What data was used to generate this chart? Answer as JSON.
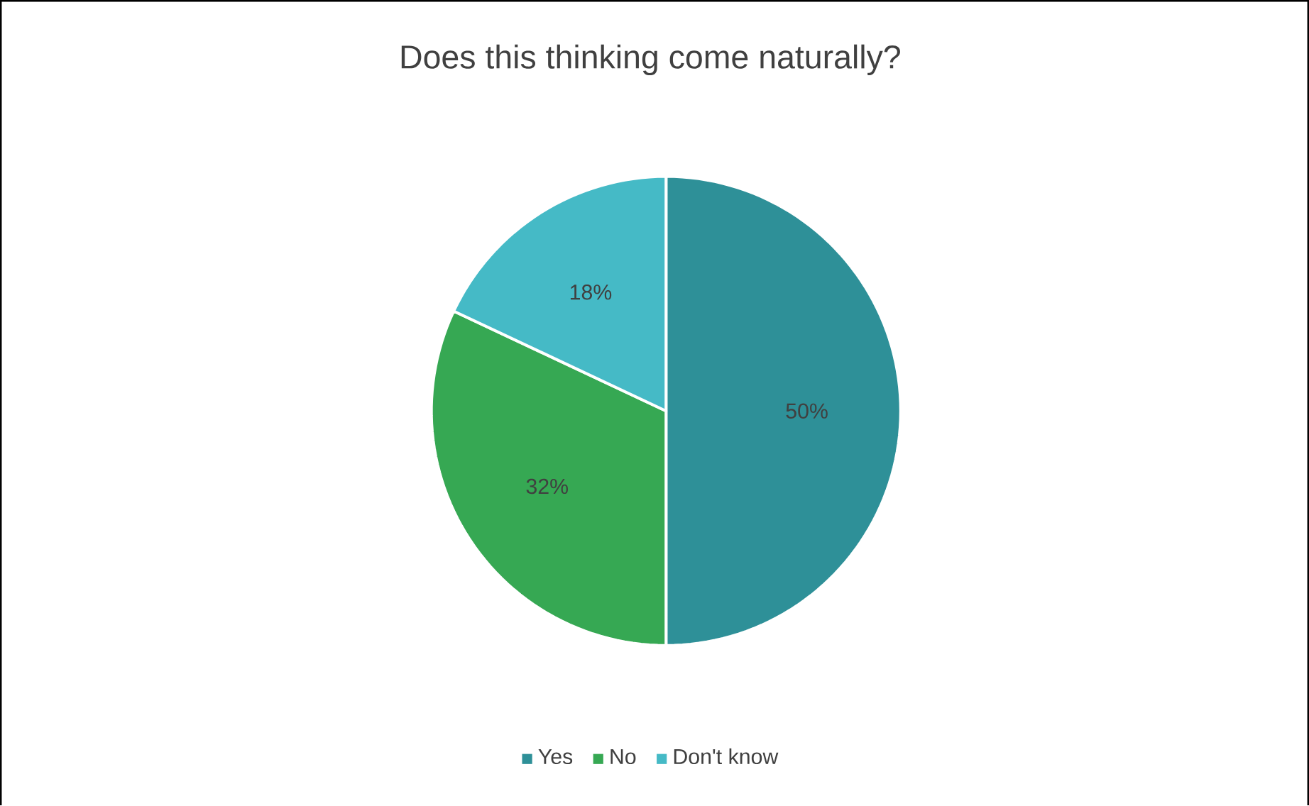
{
  "chart_data": {
    "type": "pie",
    "title": "Does this thinking come naturally?",
    "categories": [
      "Yes",
      "No",
      "Don't know"
    ],
    "values": [
      50,
      32,
      18
    ],
    "colors": [
      "#2e9098",
      "#36a853",
      "#45bac6"
    ],
    "value_labels": [
      "50%",
      "32%",
      "18%"
    ],
    "legend": "bottom"
  }
}
